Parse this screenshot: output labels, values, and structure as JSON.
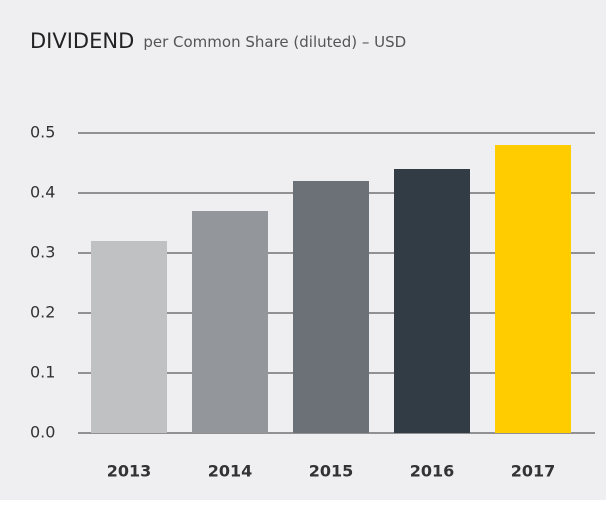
{
  "chart_data": {
    "type": "bar",
    "title": "DIVIDEND",
    "subtitle": "per Common Share (diluted) – USD",
    "categories": [
      "2013",
      "2014",
      "2015",
      "2016",
      "2017"
    ],
    "values": [
      0.32,
      0.37,
      0.42,
      0.44,
      0.48
    ],
    "colors": [
      "#c0c1c3",
      "#93979b",
      "#6b7177",
      "#313c45",
      "#ffcc00"
    ],
    "ylim": [
      0,
      0.5
    ],
    "yticks": [
      {
        "value": 0,
        "label": "0.0"
      },
      0.1,
      0.2,
      0.3,
      0.4,
      0.5
    ],
    "grid": true
  }
}
